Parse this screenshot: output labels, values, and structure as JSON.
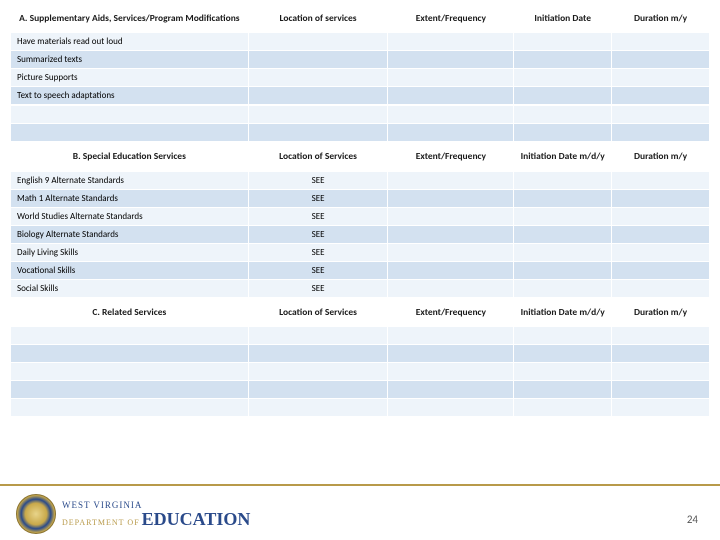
{
  "sectionA": {
    "headers": [
      "A. Supplementary Aids, Services/Program Modifications",
      "Location of services",
      "Extent/Frequency",
      "Initiation Date",
      "Duration m/y"
    ],
    "rows": [
      "Have materials read out loud",
      "Summarized texts",
      "Picture Supports",
      "Text to speech adaptations"
    ]
  },
  "sectionB": {
    "headers": [
      "B. Special Education Services",
      "Location of Services",
      "Extent/Frequency",
      "Initiation Date m/d/y",
      "Duration m/y"
    ],
    "rows": [
      {
        "label": "English 9  Alternate Standards",
        "loc": "SEE"
      },
      {
        "label": "Math 1 Alternate Standards",
        "loc": "SEE"
      },
      {
        "label": "World Studies Alternate Standards",
        "loc": "SEE"
      },
      {
        "label": "Biology Alternate Standards",
        "loc": "SEE"
      },
      {
        "label": "Daily Living Skills",
        "loc": "SEE"
      },
      {
        "label": "Vocational Skills",
        "loc": "SEE"
      },
      {
        "label": "Social Skills",
        "loc": "SEE"
      }
    ]
  },
  "sectionC": {
    "headers": [
      "C. Related Services",
      "Location of Services",
      "Extent/Frequency",
      "Initiation Date m/d/y",
      "Duration m/y"
    ],
    "blankRows": 5
  },
  "logo": {
    "line1": "WEST VIRGINIA",
    "dept": "DEPARTMENT OF",
    "line2": "EDUCATION"
  },
  "pageNumber": "24",
  "colors": {
    "band_light": "#eef4fa",
    "band_dark": "#d3e1f0",
    "gold": "#b89a4a",
    "navy": "#2a4a8a"
  }
}
